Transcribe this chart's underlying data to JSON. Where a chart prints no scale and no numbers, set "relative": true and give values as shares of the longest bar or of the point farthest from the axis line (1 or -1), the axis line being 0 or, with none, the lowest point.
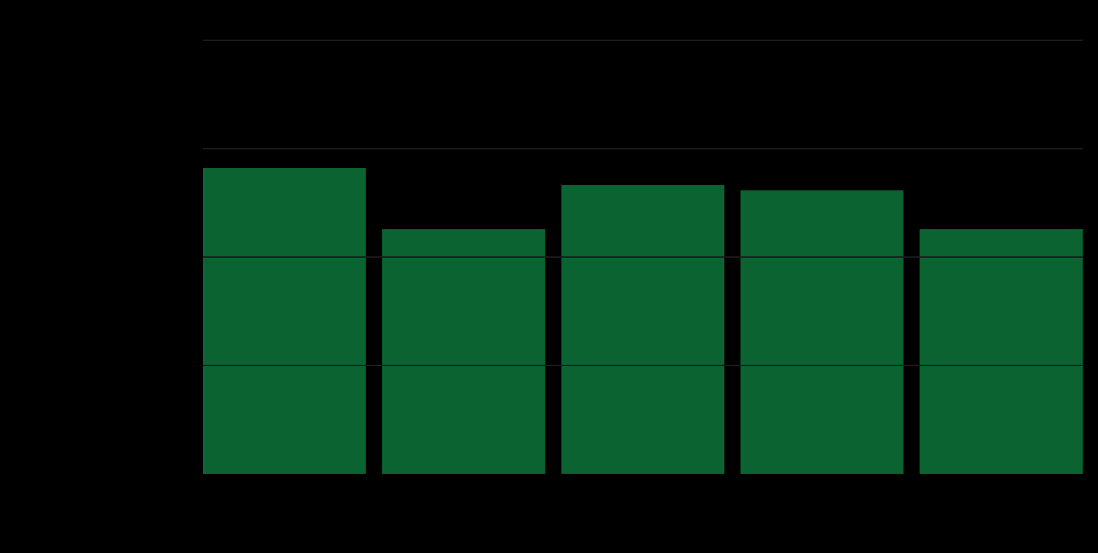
{
  "chart_data": {
    "type": "bar",
    "categories": [
      null,
      null,
      null,
      null,
      null
    ],
    "values": [
      1,
      0.8,
      0.945,
      0.927,
      0.8
    ],
    "color": "#0a6331",
    "relative": true,
    "ref_lines": [
      {
        "axis": "y",
        "value": 0.3545,
        "color": "#1c1c1c"
      },
      {
        "axis": "y",
        "value": 0.709,
        "color": "#1c1c1c"
      },
      {
        "axis": "y",
        "value": 1.0635,
        "color": "#1c1c1c"
      },
      {
        "axis": "y",
        "value": 1.418,
        "color": "#1c1c1c"
      }
    ]
  }
}
